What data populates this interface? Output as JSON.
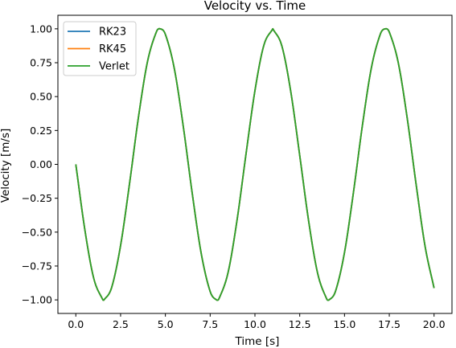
{
  "chart_data": {
    "type": "line",
    "title": "Velocity vs. Time",
    "xlabel": "Time [s]",
    "ylabel": "Velocity [m/s]",
    "xlim": [
      -1.0,
      21.0
    ],
    "ylim": [
      -1.1,
      1.1
    ],
    "x_ticks": [
      0.0,
      2.5,
      5.0,
      7.5,
      10.0,
      12.5,
      15.0,
      17.5,
      20.0
    ],
    "x_tick_labels": [
      "0.0",
      "2.5",
      "5.0",
      "7.5",
      "10.0",
      "12.5",
      "15.0",
      "17.5",
      "20.0"
    ],
    "y_ticks": [
      -1.0,
      -0.75,
      -0.5,
      -0.25,
      0.0,
      0.25,
      0.5,
      0.75,
      1.0
    ],
    "y_tick_labels": [
      "−1.00",
      "−0.75",
      "−0.50",
      "−0.25",
      "0.00",
      "0.25",
      "0.50",
      "0.75",
      "1.00"
    ],
    "grid": false,
    "legend_position": "top-left",
    "x": [
      0.0,
      0.5,
      1.0,
      1.5,
      1.571,
      2.0,
      2.5,
      3.0,
      3.5,
      4.0,
      4.5,
      4.712,
      5.0,
      5.5,
      6.0,
      6.5,
      7.0,
      7.5,
      7.854,
      8.0,
      8.5,
      9.0,
      9.5,
      10.0,
      10.5,
      10.996,
      11.0,
      11.5,
      12.0,
      12.5,
      13.0,
      13.5,
      14.0,
      14.137,
      14.5,
      15.0,
      15.5,
      16.0,
      16.5,
      17.0,
      17.279,
      17.5,
      18.0,
      18.5,
      19.0,
      19.5,
      20.0
    ],
    "series": [
      {
        "name": "RK23",
        "color": "#1f77b4",
        "values": [
          0.0,
          -0.479,
          -0.841,
          -0.997,
          -1.0,
          -0.909,
          -0.598,
          -0.141,
          0.351,
          0.757,
          0.978,
          1.0,
          0.959,
          0.706,
          0.279,
          -0.215,
          -0.657,
          -0.938,
          -1.0,
          -0.989,
          -0.798,
          -0.412,
          0.075,
          0.544,
          0.88,
          1.0,
          1.0,
          0.875,
          0.537,
          0.066,
          -0.42,
          -0.804,
          -0.991,
          -1.0,
          -0.935,
          -0.65,
          -0.206,
          0.288,
          0.712,
          0.961,
          1.0,
          0.976,
          0.751,
          0.342,
          -0.15,
          -0.606,
          -0.913
        ]
      },
      {
        "name": "RK45",
        "color": "#ff7f0e",
        "values": [
          0.0,
          -0.479,
          -0.841,
          -0.997,
          -1.0,
          -0.909,
          -0.598,
          -0.141,
          0.351,
          0.757,
          0.978,
          1.0,
          0.959,
          0.706,
          0.279,
          -0.215,
          -0.657,
          -0.938,
          -1.0,
          -0.989,
          -0.798,
          -0.412,
          0.075,
          0.544,
          0.88,
          1.0,
          1.0,
          0.875,
          0.537,
          0.066,
          -0.42,
          -0.804,
          -0.991,
          -1.0,
          -0.935,
          -0.65,
          -0.206,
          0.288,
          0.712,
          0.961,
          1.0,
          0.976,
          0.751,
          0.342,
          -0.15,
          -0.606,
          -0.913
        ]
      },
      {
        "name": "Verlet",
        "color": "#2ca02c",
        "values": [
          0.0,
          -0.479,
          -0.841,
          -0.997,
          -1.0,
          -0.909,
          -0.598,
          -0.141,
          0.351,
          0.757,
          0.978,
          1.0,
          0.959,
          0.706,
          0.279,
          -0.215,
          -0.657,
          -0.938,
          -1.0,
          -0.989,
          -0.798,
          -0.412,
          0.075,
          0.544,
          0.88,
          1.0,
          1.0,
          0.875,
          0.537,
          0.066,
          -0.42,
          -0.804,
          -0.991,
          -1.0,
          -0.935,
          -0.65,
          -0.206,
          0.288,
          0.712,
          0.961,
          1.0,
          0.976,
          0.751,
          0.342,
          -0.15,
          -0.606,
          -0.913
        ]
      }
    ]
  }
}
